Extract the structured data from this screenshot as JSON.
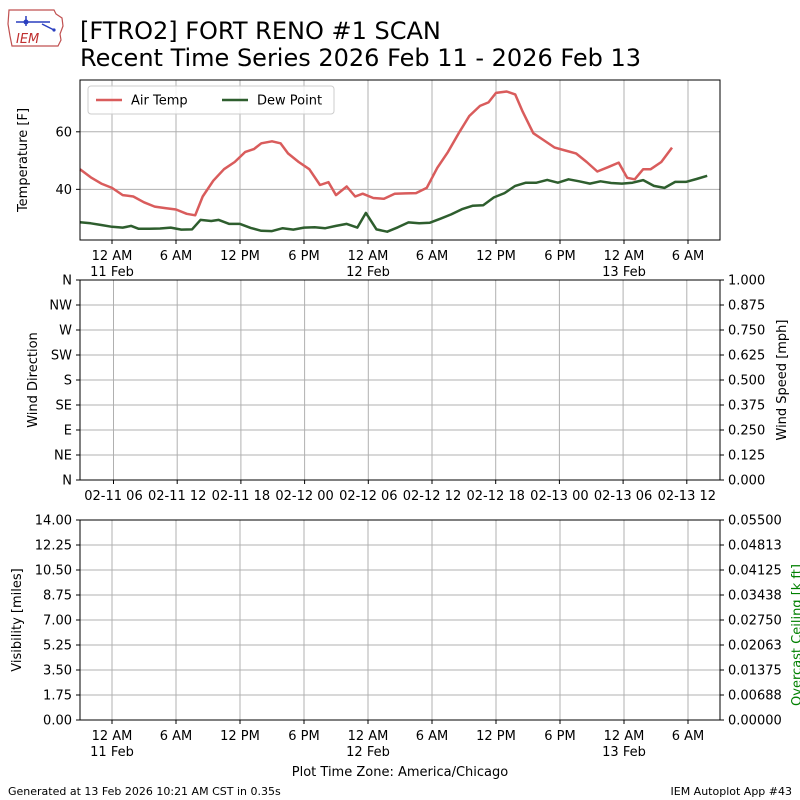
{
  "header": {
    "logo_text": "IEM",
    "title_line1": "[FTRO2] FORT RENO #1 SCAN",
    "title_line2": "Recent Time Series 2026 Feb 11 - 2026 Feb 13"
  },
  "footer": {
    "generated": "Generated at 13 Feb 2026 10:21 AM CST in 0.35s",
    "app": "IEM Autoplot App #43"
  },
  "colors": {
    "air_temp": "#d95c5c",
    "dew_point": "#2e5e2e",
    "grid": "#b0b0b0",
    "ceiling_label": "#008000"
  },
  "chart_data": [
    {
      "type": "line",
      "ylabel": "Temperature [F]",
      "ylim": [
        22.4,
        78.0
      ],
      "yticks": [
        40,
        60
      ],
      "xlim_hours": [
        0,
        60
      ],
      "grid": true,
      "legend_placement": "top-left",
      "x_tick_labels": [
        {
          "hour": 3,
          "label": "12 AM",
          "sub": "11 Feb"
        },
        {
          "hour": 9,
          "label": "6 AM",
          "sub": ""
        },
        {
          "hour": 15,
          "label": "12 PM",
          "sub": ""
        },
        {
          "hour": 21,
          "label": "6 PM",
          "sub": ""
        },
        {
          "hour": 27,
          "label": "12 AM",
          "sub": "12 Feb"
        },
        {
          "hour": 33,
          "label": "6 AM",
          "sub": ""
        },
        {
          "hour": 39,
          "label": "12 PM",
          "sub": ""
        },
        {
          "hour": 45,
          "label": "6 PM",
          "sub": ""
        },
        {
          "hour": 51,
          "label": "12 AM",
          "sub": "13 Feb"
        },
        {
          "hour": 57,
          "label": "6 AM",
          "sub": ""
        }
      ],
      "series": [
        {
          "name": "Air Temp",
          "color": "#d95c5c",
          "points": [
            [
              0,
              47
            ],
            [
              1,
              44.2
            ],
            [
              2,
              42
            ],
            [
              3,
              40.5
            ],
            [
              4,
              38
            ],
            [
              5,
              37.5
            ],
            [
              6,
              35.5
            ],
            [
              7,
              34
            ],
            [
              8,
              33.5
            ],
            [
              9,
              33
            ],
            [
              10,
              31.5
            ],
            [
              10.8,
              31
            ],
            [
              11.5,
              37.5
            ],
            [
              12.5,
              43
            ],
            [
              13.5,
              47
            ],
            [
              14.5,
              49.5
            ],
            [
              15.5,
              53
            ],
            [
              16.3,
              54
            ],
            [
              17,
              56
            ],
            [
              18,
              56.7
            ],
            [
              18.8,
              56
            ],
            [
              19.5,
              52.5
            ],
            [
              20.5,
              49.5
            ],
            [
              21.5,
              47
            ],
            [
              22.5,
              41.5
            ],
            [
              23.3,
              42.5
            ],
            [
              24,
              38
            ],
            [
              25,
              41
            ],
            [
              25.8,
              37.5
            ],
            [
              26.5,
              38.5
            ],
            [
              27.5,
              37
            ],
            [
              28.5,
              36.7
            ],
            [
              29.5,
              38.5
            ],
            [
              30.5,
              38.6
            ],
            [
              31.5,
              38.7
            ],
            [
              32.5,
              40.5
            ],
            [
              33.5,
              47.5
            ],
            [
              34.5,
              53
            ],
            [
              35.5,
              59.5
            ],
            [
              36.5,
              65.5
            ],
            [
              37.5,
              69
            ],
            [
              38.3,
              70.2
            ],
            [
              39,
              73.5
            ],
            [
              40,
              74
            ],
            [
              40.8,
              73
            ],
            [
              41.5,
              67
            ],
            [
              42.5,
              59.5
            ],
            [
              43.5,
              57
            ],
            [
              44.5,
              54.5
            ],
            [
              45.5,
              53.5
            ],
            [
              46.5,
              52.5
            ],
            [
              47.5,
              49.5
            ],
            [
              48.5,
              46.2
            ],
            [
              49.5,
              47.7
            ],
            [
              50.5,
              49.3
            ],
            [
              51.3,
              44
            ],
            [
              52,
              43.5
            ],
            [
              52.8,
              47
            ],
            [
              53.5,
              47
            ],
            [
              54.5,
              49.5
            ],
            [
              55.5,
              54.5
            ]
          ]
        },
        {
          "name": "Dew Point",
          "color": "#2e5e2e",
          "points": [
            [
              0,
              28.6
            ],
            [
              1,
              28.2
            ],
            [
              2,
              27.6
            ],
            [
              3,
              27
            ],
            [
              4,
              26.7
            ],
            [
              4.8,
              27.3
            ],
            [
              5.5,
              26.3
            ],
            [
              6.5,
              26.3
            ],
            [
              7.5,
              26.4
            ],
            [
              8.5,
              26.7
            ],
            [
              9.5,
              26
            ],
            [
              10.5,
              26.1
            ],
            [
              11.3,
              29.4
            ],
            [
              12.3,
              29
            ],
            [
              13,
              29.4
            ],
            [
              14,
              28
            ],
            [
              15,
              28
            ],
            [
              16,
              26.6
            ],
            [
              17,
              25.6
            ],
            [
              18,
              25.5
            ],
            [
              19,
              26.5
            ],
            [
              20,
              26
            ],
            [
              21,
              26.7
            ],
            [
              22,
              26.8
            ],
            [
              23,
              26.5
            ],
            [
              24,
              27.3
            ],
            [
              25,
              28
            ],
            [
              26,
              26.7
            ],
            [
              26.8,
              31.8
            ],
            [
              27.8,
              26.1
            ],
            [
              28.8,
              25.3
            ],
            [
              29.8,
              26.8
            ],
            [
              30.8,
              28.5
            ],
            [
              31.8,
              28.2
            ],
            [
              32.8,
              28.4
            ],
            [
              33.8,
              29.8
            ],
            [
              34.8,
              31.3
            ],
            [
              35.8,
              33.1
            ],
            [
              36.8,
              34.3
            ],
            [
              37.8,
              34.5
            ],
            [
              38.8,
              37.2
            ],
            [
              39.8,
              38.7
            ],
            [
              40.8,
              41.2
            ],
            [
              41.8,
              42.3
            ],
            [
              42.8,
              42.3
            ],
            [
              43.8,
              43.3
            ],
            [
              44.8,
              42.3
            ],
            [
              45.8,
              43.5
            ],
            [
              46.8,
              42.8
            ],
            [
              47.8,
              42
            ],
            [
              48.8,
              42.8
            ],
            [
              49.8,
              42.2
            ],
            [
              50.8,
              42
            ],
            [
              51.8,
              42.3
            ],
            [
              52.8,
              43.2
            ],
            [
              53.8,
              41.2
            ],
            [
              54.8,
              40.5
            ],
            [
              55.8,
              42.6
            ],
            [
              56.8,
              42.6
            ],
            [
              57.8,
              43.6
            ],
            [
              58.8,
              44.7
            ]
          ]
        }
      ]
    },
    {
      "type": "line",
      "ylabel": "Wind Direction",
      "y2label": "Wind Speed [mph]",
      "yticks_left": [
        "N",
        "NE",
        "E",
        "SE",
        "S",
        "SW",
        "W",
        "NW",
        "N"
      ],
      "yticks_right": [
        "0.000",
        "0.125",
        "0.250",
        "0.375",
        "0.500",
        "0.625",
        "0.750",
        "0.875",
        "1.000"
      ],
      "x_tick_labels": [
        "02-11 06",
        "02-11 12",
        "02-11 18",
        "02-12 00",
        "02-12 06",
        "02-12 12",
        "02-12 18",
        "02-13 00",
        "02-13 06",
        "02-13 12"
      ],
      "grid": true,
      "series": []
    },
    {
      "type": "line",
      "ylabel": "Visibility [miles]",
      "y2label": "Overcast Ceiling [k ft]",
      "yticks_left": [
        "0.00",
        "1.75",
        "3.50",
        "5.25",
        "7.00",
        "8.75",
        "10.50",
        "12.25",
        "14.00"
      ],
      "yticks_right": [
        "0.00000",
        "0.00688",
        "0.01375",
        "0.02063",
        "0.02750",
        "0.03438",
        "0.04125",
        "0.04813",
        "0.05500"
      ],
      "xlabel": "Plot Time Zone: America/Chicago",
      "x_tick_labels": [
        {
          "hour": 3,
          "label": "12 AM",
          "sub": "11 Feb"
        },
        {
          "hour": 9,
          "label": "6 AM",
          "sub": ""
        },
        {
          "hour": 15,
          "label": "12 PM",
          "sub": ""
        },
        {
          "hour": 21,
          "label": "6 PM",
          "sub": ""
        },
        {
          "hour": 27,
          "label": "12 AM",
          "sub": "12 Feb"
        },
        {
          "hour": 33,
          "label": "6 AM",
          "sub": ""
        },
        {
          "hour": 39,
          "label": "12 PM",
          "sub": ""
        },
        {
          "hour": 45,
          "label": "6 PM",
          "sub": ""
        },
        {
          "hour": 51,
          "label": "12 AM",
          "sub": "13 Feb"
        },
        {
          "hour": 57,
          "label": "6 AM",
          "sub": ""
        }
      ],
      "grid": true,
      "series": []
    }
  ]
}
